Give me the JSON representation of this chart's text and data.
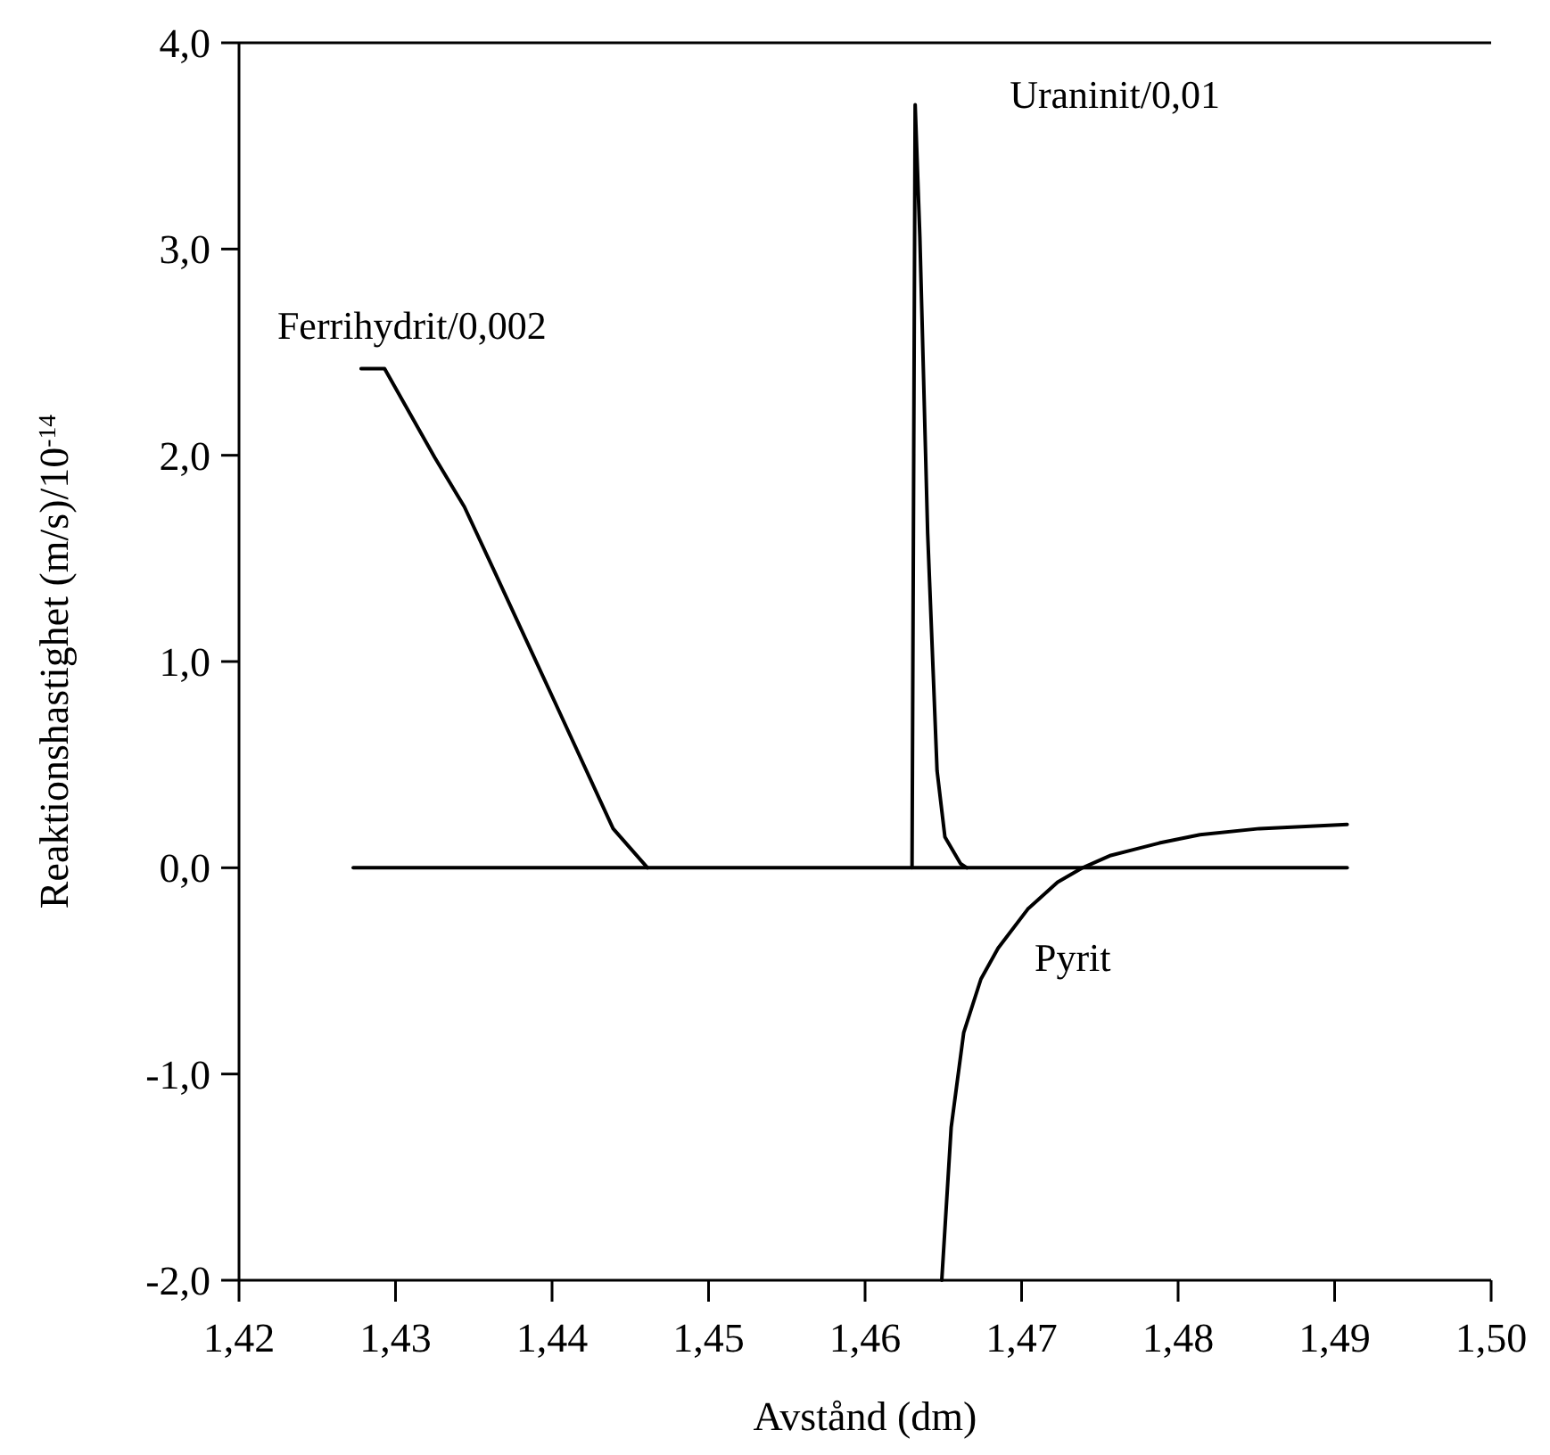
{
  "chart_data": {
    "type": "line",
    "xlabel": "Avstånd (dm)",
    "ylabel": "Reaktionshastighet (m/s)/10$^{-14}$",
    "xlim": [
      1.42,
      1.5
    ],
    "ylim": [
      -2,
      4
    ],
    "xticks": [
      {
        "value": 1.42,
        "label": "1,42"
      },
      {
        "value": 1.43,
        "label": "1,43"
      },
      {
        "value": 1.44,
        "label": "1,44"
      },
      {
        "value": 1.45,
        "label": "1,45"
      },
      {
        "value": 1.46,
        "label": "1,46"
      },
      {
        "value": 1.47,
        "label": "1,47"
      },
      {
        "value": 1.48,
        "label": "1,48"
      },
      {
        "value": 1.49,
        "label": "1,49"
      },
      {
        "value": 1.5,
        "label": "1,50"
      }
    ],
    "yticks": [
      {
        "value": -2,
        "label": "-2,0"
      },
      {
        "value": -1,
        "label": "-1,0"
      },
      {
        "value": 0,
        "label": "0,0"
      },
      {
        "value": 1,
        "label": "1,0"
      },
      {
        "value": 2,
        "label": "2,0"
      },
      {
        "value": 3,
        "label": "3,0"
      },
      {
        "value": 4,
        "label": "4,0"
      }
    ],
    "grid": false,
    "marker": "none",
    "line_style": "solid",
    "series": [
      {
        "name": "Ferrihydrit/0,002",
        "color": "#000000",
        "x": [
          1.4278,
          1.4293,
          1.4325,
          1.4344,
          1.4363,
          1.4402,
          1.4439,
          1.4461
        ],
        "values": [
          2.42,
          2.42,
          1.99,
          1.75,
          1.44,
          0.8,
          0.19,
          0
        ]
      },
      {
        "name": "Uraninit/0,01",
        "color": "#000000",
        "x": [
          1.463,
          1.4632,
          1.4635,
          1.464,
          1.4646,
          1.4651,
          1.4661,
          1.4665
        ],
        "values": [
          0,
          3.7,
          3.06,
          1.62,
          0.47,
          0.15,
          0.02,
          0
        ]
      },
      {
        "name": "Pyrit",
        "color": "#000000",
        "x": [
          1.4649,
          1.4655,
          1.4663,
          1.4674,
          1.4685,
          1.4704,
          1.4723,
          1.4739,
          1.4757,
          1.4788,
          1.4814,
          1.4852,
          1.4908
        ],
        "values": [
          -2,
          -1.26,
          -0.8,
          -0.54,
          -0.39,
          -0.2,
          -0.07,
          0,
          0.06,
          0.12,
          0.16,
          0.19,
          0.21
        ]
      },
      {
        "color": "#000000",
        "x": [
          1.4273,
          1.4908
        ],
        "values": [
          0,
          0
        ]
      }
    ]
  }
}
